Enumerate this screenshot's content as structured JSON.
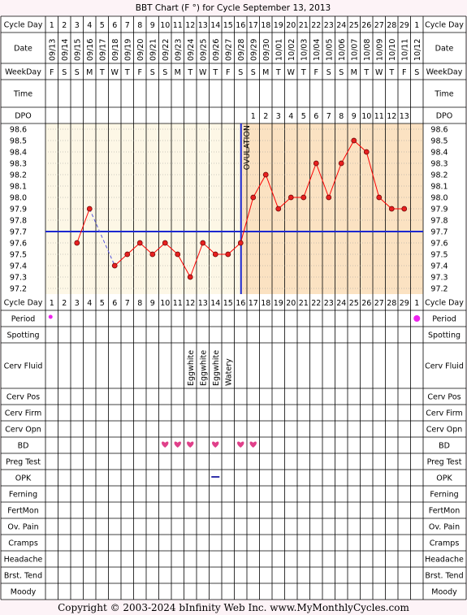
{
  "title": "BBT Chart (F °) for Cycle September 13, 2013",
  "copyright": "Copyright © 2003-2024 bInfinity Web Inc.     www.MyMonthlyCycles.com",
  "labels": {
    "cycle_day": "Cycle Day",
    "date": "Date",
    "weekday": "WeekDay",
    "time": "Time",
    "dpo": "DPO",
    "period": "Period",
    "spotting": "Spotting",
    "cerv_fluid": "Cerv Fluid",
    "cerv_pos": "Cerv Pos",
    "cerv_firm": "Cerv Firm",
    "cerv_opn": "Cerv Opn",
    "bd": "BD",
    "preg_test": "Preg Test",
    "opk": "OPK",
    "ferning": "Ferning",
    "fertmon": "FertMon",
    "ov_pain": "Ov. Pain",
    "cramps": "Cramps",
    "headache": "Headache",
    "brst_tend": "Brst. Tend",
    "moody": "Moody"
  },
  "ovulation_label": "OVULATION",
  "colors": {
    "background": "#fdf3f7",
    "pre_ov": "#fdf7e6",
    "post_ov": "#fbe2c2",
    "line": "#ff0000",
    "point": "#e82020",
    "ov_line": "#1c28d0",
    "heart": "#e0408a",
    "period": "#ee22ee",
    "opk": "#3333aa"
  },
  "chart_data": {
    "type": "line",
    "title": "BBT Chart (F °) for Cycle September 13, 2013",
    "cycle_days": [
      "1",
      "2",
      "3",
      "4",
      "5",
      "6",
      "7",
      "8",
      "9",
      "10",
      "11",
      "12",
      "13",
      "14",
      "15",
      "16",
      "17",
      "18",
      "19",
      "20",
      "21",
      "22",
      "23",
      "24",
      "25",
      "26",
      "27",
      "28",
      "29",
      "1"
    ],
    "dates": [
      "09/13",
      "09/14",
      "09/15",
      "09/16",
      "09/17",
      "09/18",
      "09/19",
      "09/20",
      "09/21",
      "09/22",
      "09/23",
      "09/24",
      "09/25",
      "09/26",
      "09/27",
      "09/28",
      "09/29",
      "09/30",
      "10/01",
      "10/02",
      "10/03",
      "10/04",
      "10/05",
      "10/06",
      "10/07",
      "10/08",
      "10/09",
      "10/10",
      "10/11",
      "10/12"
    ],
    "weekdays": [
      "F",
      "S",
      "S",
      "M",
      "T",
      "W",
      "T",
      "F",
      "S",
      "S",
      "M",
      "T",
      "W",
      "T",
      "F",
      "S",
      "S",
      "M",
      "T",
      "W",
      "T",
      "F",
      "S",
      "S",
      "M",
      "T",
      "W",
      "T",
      "F",
      "S"
    ],
    "dpo": [
      "",
      "",
      "",
      "",
      "",
      "",
      "",
      "",
      "",
      "",
      "",
      "",
      "",
      "",
      "",
      "",
      "1",
      "2",
      "3",
      "4",
      "5",
      "6",
      "7",
      "8",
      "9",
      "10",
      "11",
      "12",
      "13",
      ""
    ],
    "temps": [
      null,
      null,
      97.6,
      97.9,
      null,
      97.4,
      97.5,
      97.6,
      97.5,
      97.6,
      97.5,
      97.3,
      97.6,
      97.5,
      97.5,
      97.6,
      98.0,
      98.2,
      97.9,
      98.0,
      98.0,
      98.3,
      98.0,
      98.3,
      98.5,
      98.4,
      98.0,
      97.9,
      97.9,
      null
    ],
    "dashed_segments": [
      [
        4,
        6
      ]
    ],
    "y_ticks": [
      "98.6",
      "98.5",
      "98.4",
      "98.3",
      "98.2",
      "98.1",
      "98.0",
      "97.9",
      "97.8",
      "97.7",
      "97.6",
      "97.5",
      "97.4",
      "97.3",
      "97.2"
    ],
    "ylim": [
      97.2,
      98.6
    ],
    "coverline": 97.7,
    "ovulation_after_day_index": 16,
    "ovulation_label": "OVULATION",
    "period": [
      1,
      30
    ],
    "cerv_fluid": {
      "12": "Eggwhite",
      "13": "Eggwhite",
      "14": "Eggwhite",
      "15": "Watery"
    },
    "bd": [
      10,
      11,
      12,
      14,
      16,
      17
    ],
    "opk": [
      14
    ]
  }
}
